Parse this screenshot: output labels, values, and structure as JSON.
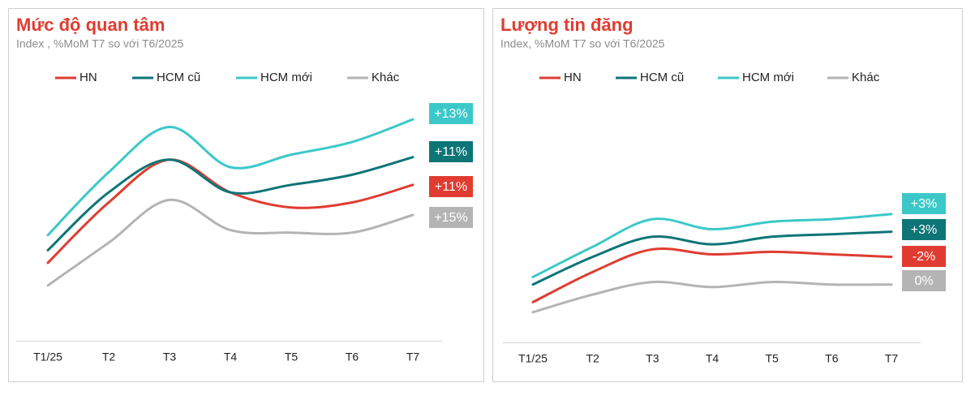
{
  "chart_data": [
    {
      "type": "line",
      "title": "Mức độ quan tâm",
      "subtitle": "Index , %MoM T7 so với T6/2025",
      "categories": [
        "T1/25",
        "T2",
        "T3",
        "T4",
        "T5",
        "T6",
        "T7"
      ],
      "ylim": [
        0,
        100
      ],
      "series": [
        {
          "name": "HN",
          "color": "#e03c31",
          "values": [
            31,
            55,
            72,
            59,
            53,
            55,
            62
          ],
          "end_label": "+11%"
        },
        {
          "name": "HCM cũ",
          "color": "#0e7577",
          "values": [
            36,
            59,
            72,
            59,
            62,
            66,
            73
          ],
          "end_label": "+11%"
        },
        {
          "name": "HCM mới",
          "color": "#3cc8c8",
          "values": [
            42,
            67,
            85,
            69,
            74,
            79,
            88
          ],
          "end_label": "+13%"
        },
        {
          "name": "Khác",
          "color": "#b4b4b4",
          "values": [
            22,
            39,
            56,
            44,
            43,
            43,
            50
          ],
          "end_label": "+15%"
        }
      ]
    },
    {
      "type": "line",
      "title": "Lượng tin đăng",
      "subtitle": "Index, %MoM T7 so với T6/2025",
      "categories": [
        "T1/25",
        "T2",
        "T3",
        "T4",
        "T5",
        "T6",
        "T7"
      ],
      "ylim": [
        0,
        100
      ],
      "series": [
        {
          "name": "HN",
          "color": "#e03c31",
          "values": [
            16,
            28,
            37,
            35,
            36,
            35,
            34
          ],
          "end_label": "-2%"
        },
        {
          "name": "HCM cũ",
          "color": "#0e7577",
          "values": [
            23,
            34,
            42,
            39,
            42,
            43,
            44
          ],
          "end_label": "+3%"
        },
        {
          "name": "HCM mới",
          "color": "#3cc8c8",
          "values": [
            26,
            38,
            49,
            45,
            48,
            49,
            51
          ],
          "end_label": "+3%"
        },
        {
          "name": "Khác",
          "color": "#b4b4b4",
          "values": [
            12,
            19,
            24,
            22,
            24,
            23,
            23
          ],
          "end_label": "0%"
        }
      ]
    }
  ]
}
